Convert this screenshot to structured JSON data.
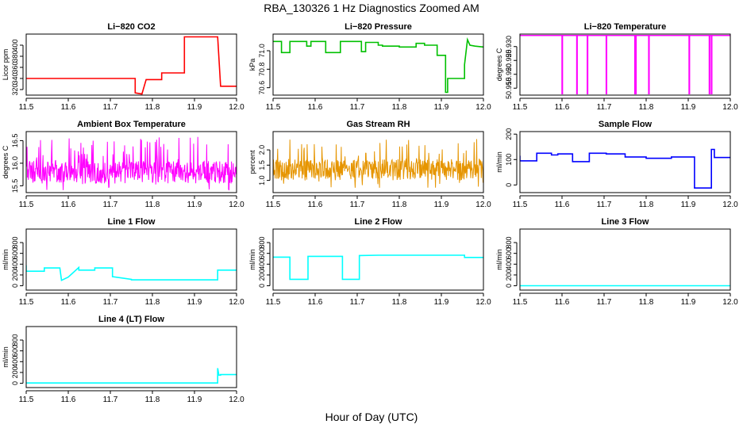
{
  "figure": {
    "title": "RBA_130326  1 Hz Diagnostics Zoomed AM",
    "xlabel": "Hour of Day (UTC)"
  },
  "chart_data": [
    {
      "type": "line",
      "title": "Li−820 CO2",
      "ylabel": "Licor ppm",
      "color": "#ff0000",
      "xlim": [
        11.5,
        12.0
      ],
      "ylim": [
        310,
        420
      ],
      "x_ticks": [
        11.5,
        11.6,
        11.7,
        11.8,
        11.9,
        12.0
      ],
      "x_tick_labels": [
        "11.5",
        "11.6",
        "11.7",
        "11.8",
        "11.9",
        "12.0"
      ],
      "y_ticks": [
        320,
        340,
        360,
        380,
        400
      ],
      "y_tick_labels": [
        "320",
        "340",
        "360",
        "380",
        "400"
      ],
      "x": [
        11.5,
        11.759,
        11.759,
        11.775,
        11.785,
        11.785,
        11.822,
        11.822,
        11.845,
        11.845,
        11.876,
        11.876,
        11.955,
        11.962,
        11.962,
        12.0
      ],
      "y": [
        340,
        340,
        314,
        312,
        338,
        338,
        338,
        350,
        350,
        350,
        350,
        415,
        415,
        326,
        326,
        326
      ]
    },
    {
      "type": "line",
      "title": "Li−820 Pressure",
      "ylabel": "kPa",
      "color": "#00c000",
      "xlim": [
        11.5,
        12.0
      ],
      "ylim": [
        70.52,
        71.18
      ],
      "x_ticks": [
        11.5,
        11.6,
        11.7,
        11.8,
        11.9,
        12.0
      ],
      "x_tick_labels": [
        "11.5",
        "11.6",
        "11.7",
        "11.8",
        "11.9",
        "12.0"
      ],
      "y_ticks": [
        70.6,
        70.8,
        71.0
      ],
      "y_tick_labels": [
        "70.6",
        "70.8",
        "71.0"
      ],
      "x": [
        11.5,
        11.52,
        11.52,
        11.54,
        11.54,
        11.58,
        11.58,
        11.59,
        11.59,
        11.625,
        11.625,
        11.66,
        11.66,
        11.71,
        11.71,
        11.72,
        11.72,
        11.75,
        11.75,
        11.76,
        11.76,
        11.8,
        11.8,
        11.84,
        11.84,
        11.86,
        11.86,
        11.89,
        11.89,
        11.91,
        11.91,
        11.915,
        11.915,
        11.955,
        11.955,
        11.962,
        11.968,
        11.98,
        12.0
      ],
      "y": [
        71.1,
        71.1,
        70.98,
        70.98,
        71.1,
        71.1,
        71.05,
        71.05,
        71.1,
        71.1,
        70.98,
        70.98,
        71.1,
        71.1,
        70.99,
        70.99,
        71.09,
        71.09,
        71.06,
        71.06,
        71.05,
        71.05,
        71.04,
        71.04,
        71.08,
        71.08,
        71.06,
        71.06,
        70.95,
        70.95,
        70.55,
        70.55,
        70.7,
        70.7,
        70.85,
        71.12,
        71.06,
        71.05,
        71.04
      ]
    },
    {
      "type": "line",
      "title": "Li−820 Temperature",
      "ylabel": "degrees C",
      "color": "#ff00ff",
      "xlim": [
        11.5,
        12.0
      ],
      "ylim": [
        50.9125,
        50.9345
      ],
      "x_ticks": [
        11.5,
        11.6,
        11.7,
        11.8,
        11.9,
        12.0
      ],
      "x_tick_labels": [
        "11.5",
        "11.6",
        "11.7",
        "11.8",
        "11.9",
        "12.0"
      ],
      "y_ticks": [
        50.915,
        50.92,
        50.925,
        50.93
      ],
      "y_tick_labels": [
        "50.915",
        "50.920",
        "50.925",
        "50.930"
      ],
      "baseline": 50.934,
      "drop_to": 50.913,
      "drops_x": [
        11.6,
        11.635,
        11.66,
        11.705,
        11.773,
        11.775,
        11.806,
        11.902,
        11.95,
        11.955
      ]
    },
    {
      "type": "line",
      "title": "Ambient Box Temperature",
      "ylabel": "degrees C",
      "color": "#ff00ff",
      "xlim": [
        11.5,
        12.0
      ],
      "ylim": [
        15.35,
        16.7
      ],
      "x_ticks": [
        11.5,
        11.6,
        11.7,
        11.8,
        11.9,
        12.0
      ],
      "x_tick_labels": [
        "11.5",
        "11.6",
        "11.7",
        "11.8",
        "11.9",
        "12.0"
      ],
      "y_ticks": [
        15.5,
        16.0,
        16.5
      ],
      "y_tick_labels": [
        "15.5",
        "16.0",
        "16.5"
      ],
      "noise": {
        "center": 15.8,
        "band_low": 15.55,
        "band_high": 16.05,
        "spike_high": 16.6,
        "spike_low": 15.4
      }
    },
    {
      "type": "line",
      "title": "Gas Stream RH",
      "ylabel": "percent",
      "color": "#e69500",
      "xlim": [
        11.5,
        12.0
      ],
      "ylim": [
        0.6,
        2.6
      ],
      "x_ticks": [
        11.5,
        11.6,
        11.7,
        11.8,
        11.9,
        12.0
      ],
      "x_tick_labels": [
        "11.5",
        "11.6",
        "11.7",
        "11.8",
        "11.9",
        "12.0"
      ],
      "y_ticks": [
        1.0,
        1.5,
        2.0
      ],
      "y_tick_labels": [
        "1.0",
        "1.5",
        "2.0"
      ],
      "noise": {
        "center": 1.35,
        "band_low": 1.0,
        "band_high": 1.7,
        "spike_high": 2.4,
        "spike_low": 0.75
      }
    },
    {
      "type": "line",
      "title": "Sample Flow",
      "ylabel": "ml/min",
      "color": "#0000ff",
      "xlim": [
        11.5,
        12.0
      ],
      "ylim": [
        -30,
        210
      ],
      "x_ticks": [
        11.5,
        11.6,
        11.7,
        11.8,
        11.9,
        12.0
      ],
      "x_tick_labels": [
        "11.5",
        "11.6",
        "11.7",
        "11.8",
        "11.9",
        "12.0"
      ],
      "y_ticks": [
        0,
        100,
        200
      ],
      "y_tick_labels": [
        "0",
        "100",
        "200"
      ],
      "x": [
        11.5,
        11.5,
        11.54,
        11.54,
        11.575,
        11.575,
        11.59,
        11.59,
        11.625,
        11.625,
        11.665,
        11.665,
        11.705,
        11.705,
        11.75,
        11.75,
        11.8,
        11.8,
        11.86,
        11.86,
        11.915,
        11.915,
        11.955,
        11.955,
        11.962,
        11.962,
        12.0
      ],
      "y": [
        115,
        95,
        95,
        125,
        125,
        118,
        118,
        122,
        122,
        92,
        92,
        125,
        125,
        122,
        122,
        110,
        110,
        105,
        105,
        110,
        110,
        -12,
        -12,
        140,
        140,
        108,
        108
      ]
    },
    {
      "type": "line",
      "title": "Line 1 Flow",
      "ylabel": "ml/min",
      "color": "#00ffff",
      "xlim": [
        11.5,
        12.0
      ],
      "ylim": [
        -80,
        1050
      ],
      "x_ticks": [
        11.5,
        11.6,
        11.7,
        11.8,
        11.9,
        12.0
      ],
      "x_tick_labels": [
        "11.5",
        "11.6",
        "11.7",
        "11.8",
        "11.9",
        "12.0"
      ],
      "y_ticks": [
        0,
        200,
        400,
        600,
        800
      ],
      "y_tick_labels": [
        "0",
        "200",
        "400",
        "600",
        "800"
      ],
      "x": [
        11.5,
        11.5,
        11.543,
        11.543,
        11.58,
        11.58,
        11.584,
        11.584,
        11.6,
        11.6,
        11.625,
        11.625,
        11.663,
        11.663,
        11.705,
        11.705,
        11.75,
        11.75,
        11.955,
        11.955,
        12.0
      ],
      "y": [
        380,
        270,
        270,
        330,
        330,
        330,
        100,
        100,
        160,
        160,
        340,
        290,
        290,
        330,
        330,
        170,
        120,
        110,
        110,
        290,
        290
      ]
    },
    {
      "type": "line",
      "title": "Line 2 Flow",
      "ylabel": "ml/min",
      "color": "#00ffff",
      "xlim": [
        11.5,
        12.0
      ],
      "ylim": [
        -80,
        1050
      ],
      "x_ticks": [
        11.5,
        11.6,
        11.7,
        11.8,
        11.9,
        12.0
      ],
      "x_tick_labels": [
        "11.5",
        "11.6",
        "11.7",
        "11.8",
        "11.9",
        "12.0"
      ],
      "y_ticks": [
        0,
        200,
        400,
        600,
        800
      ],
      "y_tick_labels": [
        "0",
        "200",
        "400",
        "600",
        "800"
      ],
      "x": [
        11.5,
        11.54,
        11.54,
        11.583,
        11.583,
        11.665,
        11.665,
        11.705,
        11.705,
        11.75,
        11.95,
        11.955,
        11.955,
        12.0
      ],
      "y": [
        530,
        530,
        120,
        120,
        545,
        545,
        120,
        120,
        560,
        565,
        565,
        565,
        525,
        525
      ]
    },
    {
      "type": "line",
      "title": "Line 3 Flow",
      "ylabel": "ml/min",
      "color": "#00ffff",
      "xlim": [
        11.5,
        12.0
      ],
      "ylim": [
        -80,
        1050
      ],
      "x_ticks": [
        11.5,
        11.6,
        11.7,
        11.8,
        11.9,
        12.0
      ],
      "x_tick_labels": [
        "11.5",
        "11.6",
        "11.7",
        "11.8",
        "11.9",
        "12.0"
      ],
      "y_ticks": [
        0,
        200,
        400,
        600,
        800
      ],
      "y_tick_labels": [
        "0",
        "200",
        "400",
        "600",
        "800"
      ],
      "x": [
        11.5,
        12.0
      ],
      "y": [
        0,
        0
      ]
    },
    {
      "type": "line",
      "title": "Line 4 (LT) Flow",
      "ylabel": "ml/min",
      "color": "#00ffff",
      "xlim": [
        11.5,
        12.0
      ],
      "ylim": [
        -80,
        1050
      ],
      "x_ticks": [
        11.5,
        11.6,
        11.7,
        11.8,
        11.9,
        12.0
      ],
      "x_tick_labels": [
        "11.5",
        "11.6",
        "11.7",
        "11.8",
        "11.9",
        "12.0"
      ],
      "y_ticks": [
        0,
        200,
        400,
        600,
        800
      ],
      "y_tick_labels": [
        "0",
        "200",
        "400",
        "600",
        "800"
      ],
      "x": [
        11.5,
        11.955,
        11.955,
        11.958,
        11.962,
        11.962,
        12.0
      ],
      "y": [
        5,
        5,
        280,
        150,
        150,
        160,
        160
      ]
    }
  ]
}
